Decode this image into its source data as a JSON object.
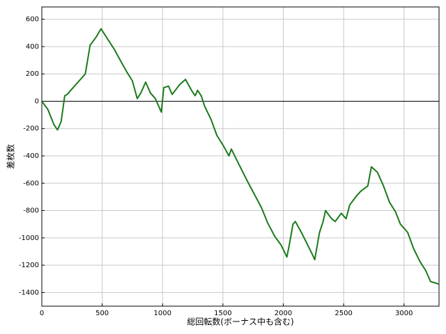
{
  "chart_data": {
    "type": "line",
    "xlabel": "総回転数(ボーナス中も含む)",
    "ylabel": "差枚数",
    "x": [
      0,
      50,
      100,
      130,
      160,
      190,
      210,
      250,
      300,
      360,
      400,
      450,
      490,
      520,
      600,
      650,
      700,
      750,
      790,
      820,
      860,
      900,
      940,
      990,
      1010,
      1050,
      1080,
      1140,
      1190,
      1240,
      1270,
      1290,
      1320,
      1350,
      1400,
      1450,
      1500,
      1550,
      1570,
      1620,
      1700,
      1760,
      1820,
      1870,
      1930,
      1980,
      2030,
      2050,
      2080,
      2100,
      2150,
      2200,
      2240,
      2260,
      2300,
      2330,
      2350,
      2400,
      2430,
      2480,
      2520,
      2550,
      2600,
      2640,
      2700,
      2730,
      2780,
      2830,
      2880,
      2930,
      2970,
      3030,
      3080,
      3130,
      3180,
      3220,
      3260,
      3290
    ],
    "series": [
      {
        "color": "#1a7a1a",
        "values": [
          0,
          -60,
          -170,
          -210,
          -150,
          40,
          50,
          90,
          140,
          200,
          410,
          470,
          530,
          490,
          380,
          300,
          220,
          150,
          20,
          60,
          140,
          60,
          20,
          -80,
          100,
          110,
          50,
          120,
          160,
          80,
          40,
          80,
          40,
          -40,
          -130,
          -250,
          -320,
          -400,
          -350,
          -440,
          -580,
          -680,
          -780,
          -890,
          -990,
          -1050,
          -1140,
          -1050,
          -900,
          -880,
          -960,
          -1050,
          -1120,
          -1160,
          -960,
          -880,
          -800,
          -860,
          -880,
          -820,
          -860,
          -760,
          -700,
          -660,
          -620,
          -480,
          -520,
          -620,
          -740,
          -810,
          -900,
          -960,
          -1080,
          -1170,
          -1240,
          -1320,
          -1330,
          -1340
        ]
      }
    ],
    "xlim": [
      0,
      3290
    ],
    "ylim": [
      -1500,
      690
    ],
    "xticks": [
      0,
      500,
      1000,
      1500,
      2000,
      2500,
      3000
    ],
    "yticks": [
      -1400,
      -1200,
      -1000,
      -800,
      -600,
      -400,
      -200,
      0,
      200,
      400,
      600
    ],
    "grid": true,
    "zero_line": true
  }
}
